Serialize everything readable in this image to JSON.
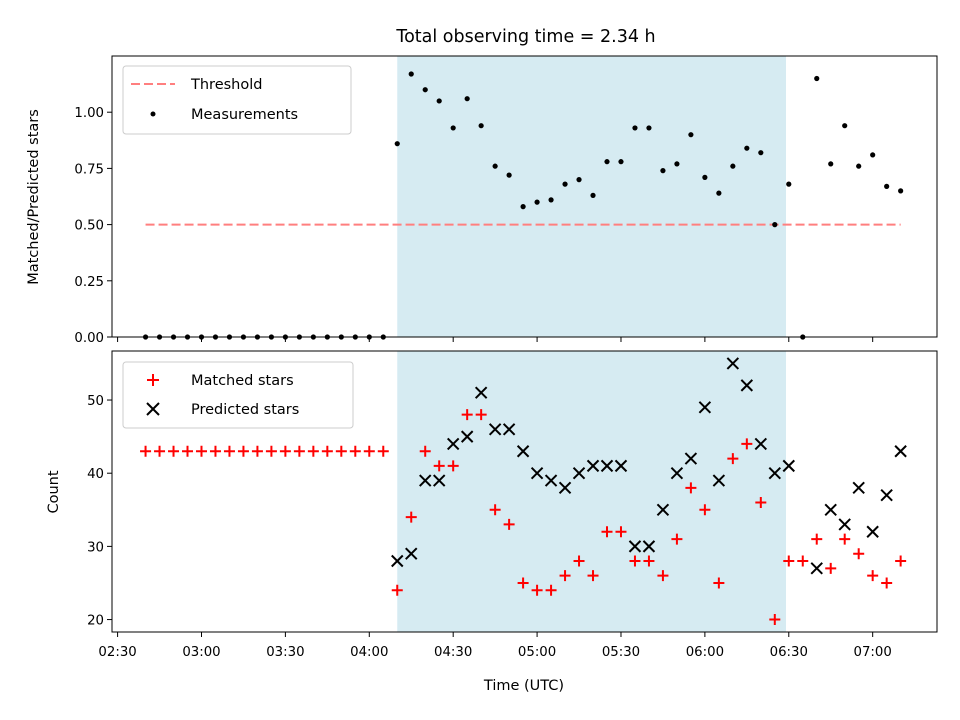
{
  "chart_data": {
    "title": "Total observing time = 2.34 h",
    "xlabel": "Time (UTC)",
    "x_ticks": [
      "02:30",
      "03:00",
      "03:30",
      "04:00",
      "04:30",
      "05:00",
      "05:30",
      "06:00",
      "06:30",
      "07:00"
    ],
    "x_range": [
      "02:28",
      "07:23"
    ],
    "shaded_interval": {
      "start": "04:10",
      "end": "06:29",
      "color": "#add8e6"
    },
    "panels": [
      {
        "type": "scatter",
        "ylabel": "Matched/Predicted stars",
        "ylim": [
          0,
          1.25
        ],
        "y_ticks": [
          "0.00",
          "0.25",
          "0.50",
          "0.75",
          "1.00"
        ],
        "legend_position": "upper-left",
        "series": [
          {
            "name": "Threshold",
            "style": "dashed-line",
            "color": "#ff7f7f",
            "x": [
              "02:40",
              "07:10"
            ],
            "y": [
              0.5,
              0.5
            ]
          },
          {
            "name": "Measurements",
            "style": "dot",
            "color": "#000000",
            "x": [
              "02:40",
              "02:45",
              "02:50",
              "02:55",
              "03:00",
              "03:05",
              "03:10",
              "03:15",
              "03:20",
              "03:25",
              "03:30",
              "03:35",
              "03:40",
              "03:45",
              "03:50",
              "03:55",
              "04:00",
              "04:05",
              "04:10",
              "04:15",
              "04:20",
              "04:25",
              "04:30",
              "04:35",
              "04:40",
              "04:45",
              "04:50",
              "04:55",
              "05:00",
              "05:05",
              "05:10",
              "05:15",
              "05:20",
              "05:25",
              "05:30",
              "05:35",
              "05:40",
              "05:45",
              "05:50",
              "05:55",
              "06:00",
              "06:05",
              "06:10",
              "06:15",
              "06:20",
              "06:25",
              "06:30",
              "06:35",
              "06:40",
              "06:45",
              "06:50",
              "06:55",
              "07:00",
              "07:05",
              "07:10"
            ],
            "y": [
              0,
              0,
              0,
              0,
              0,
              0,
              0,
              0,
              0,
              0,
              0,
              0,
              0,
              0,
              0,
              0,
              0,
              0,
              0.86,
              1.17,
              1.1,
              1.05,
              0.93,
              1.06,
              0.94,
              0.76,
              0.72,
              0.58,
              0.6,
              0.61,
              0.68,
              0.7,
              0.63,
              0.78,
              0.78,
              0.93,
              0.93,
              0.74,
              0.77,
              0.9,
              0.71,
              0.64,
              0.76,
              0.84,
              0.82,
              0.5,
              0.68,
              0.0,
              1.15,
              0.77,
              0.94,
              0.76,
              0.81,
              0.67,
              0.65
            ]
          }
        ]
      },
      {
        "type": "scatter",
        "ylabel": "Count",
        "ylim": [
          18.3,
          56.7
        ],
        "y_ticks": [
          "20",
          "30",
          "40",
          "50"
        ],
        "legend_position": "upper-left",
        "series": [
          {
            "name": "Matched stars",
            "marker": "+",
            "color": "#ff0000",
            "x": [
              "02:40",
              "02:45",
              "02:50",
              "02:55",
              "03:00",
              "03:05",
              "03:10",
              "03:15",
              "03:20",
              "03:25",
              "03:30",
              "03:35",
              "03:40",
              "03:45",
              "03:50",
              "03:55",
              "04:00",
              "04:05",
              "04:10",
              "04:15",
              "04:20",
              "04:25",
              "04:30",
              "04:35",
              "04:40",
              "04:45",
              "04:50",
              "04:55",
              "05:00",
              "05:05",
              "05:10",
              "05:15",
              "05:20",
              "05:25",
              "05:30",
              "05:35",
              "05:40",
              "05:45",
              "05:50",
              "05:55",
              "06:00",
              "06:05",
              "06:10",
              "06:15",
              "06:20",
              "06:25",
              "06:30",
              "06:35",
              "06:40",
              "06:45",
              "06:50",
              "06:55",
              "07:00",
              "07:05",
              "07:10"
            ],
            "y": [
              43,
              43,
              43,
              43,
              43,
              43,
              43,
              43,
              43,
              43,
              43,
              43,
              43,
              43,
              43,
              43,
              43,
              43,
              24,
              34,
              43,
              41,
              41,
              48,
              48,
              35,
              33,
              25,
              24,
              24,
              26,
              28,
              26,
              32,
              32,
              28,
              28,
              26,
              31,
              38,
              35,
              25,
              42,
              44,
              36,
              20,
              28,
              28,
              31,
              27,
              31,
              29,
              26,
              25,
              28
            ]
          },
          {
            "name": "Predicted stars",
            "marker": "x",
            "color": "#000000",
            "x": [
              "04:10",
              "04:15",
              "04:20",
              "04:25",
              "04:30",
              "04:35",
              "04:40",
              "04:45",
              "04:50",
              "04:55",
              "05:00",
              "05:05",
              "05:10",
              "05:15",
              "05:20",
              "05:25",
              "05:30",
              "05:35",
              "05:40",
              "05:45",
              "05:50",
              "05:55",
              "06:00",
              "06:05",
              "06:10",
              "06:15",
              "06:20",
              "06:25",
              "06:30",
              "06:40",
              "06:45",
              "06:50",
              "06:55",
              "07:00",
              "07:05",
              "07:10"
            ],
            "y": [
              28,
              29,
              39,
              39,
              44,
              45,
              51,
              46,
              46,
              43,
              40,
              39,
              38,
              40,
              41,
              41,
              41,
              30,
              30,
              35,
              40,
              42,
              49,
              39,
              55,
              52,
              44,
              40,
              41,
              27,
              35,
              33,
              38,
              32,
              37,
              43
            ]
          }
        ]
      }
    ]
  }
}
